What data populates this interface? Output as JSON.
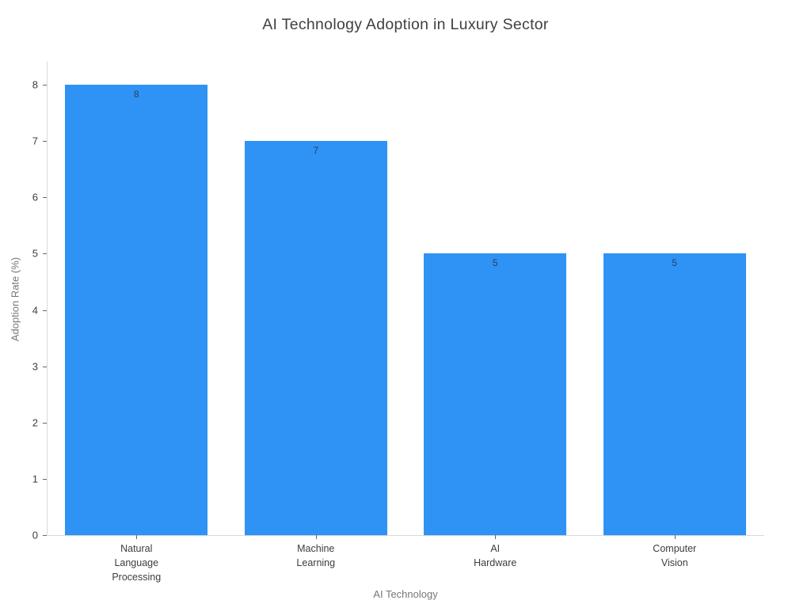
{
  "title": "AI Technology Adoption in Luxury Sector",
  "chart_data": {
    "type": "bar",
    "title": "AI Technology Adoption in Luxury Sector",
    "xlabel": "AI Technology",
    "ylabel": "Adoption Rate (%)",
    "categories": [
      "Natural Language Processing",
      "Machine Learning",
      "AI Hardware",
      "Computer Vision"
    ],
    "values": [
      8,
      7,
      5,
      5
    ],
    "bar_value_labels": [
      "8",
      "7",
      "5",
      "5"
    ],
    "ylim": [
      0,
      8
    ],
    "yticks": [
      0,
      1,
      2,
      3,
      4,
      5,
      6,
      7,
      8
    ],
    "grid": false,
    "legend": null,
    "colors": {
      "bar_fill": "#2e93f5",
      "bar_value_text": "#2a3f5f",
      "axis_line": "#d9d9d9",
      "tick_mark": "#666666",
      "tick_label": "#3d3d3d",
      "axis_title": "#777777",
      "chart_title": "#404040",
      "background": "#ffffff"
    }
  }
}
